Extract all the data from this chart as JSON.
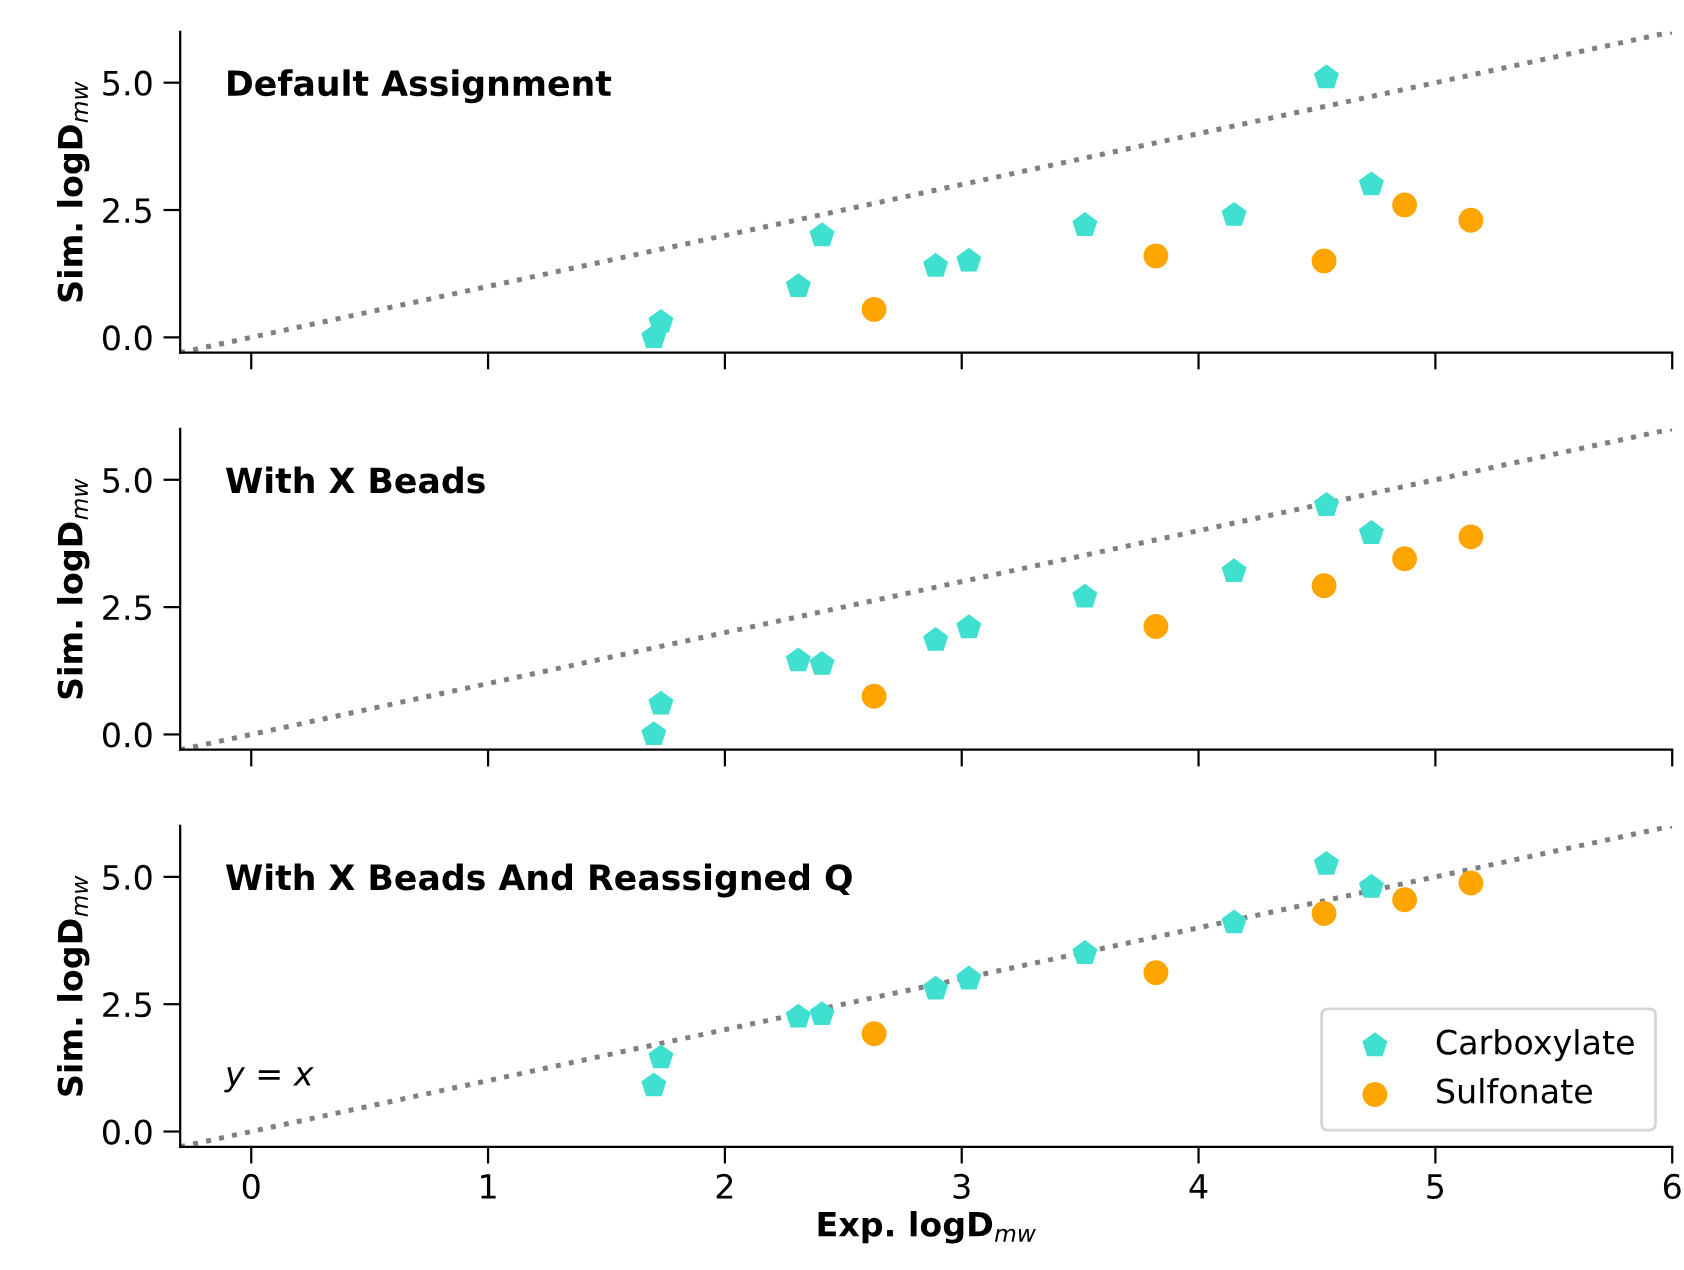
{
  "chart_data": [
    {
      "type": "scatter",
      "title": "Default Assignment",
      "ylabel": "Sim. logD$_{mw}$",
      "xlim": [
        -0.3,
        6
      ],
      "ylim": [
        -0.3,
        6
      ],
      "xticks": [
        0,
        1,
        2,
        3,
        4,
        5,
        6
      ],
      "yticks": [
        {
          "value": 0,
          "label": "0.0"
        },
        {
          "value": 2.5,
          "label": "2.5"
        },
        {
          "value": 5,
          "label": "5.0"
        }
      ],
      "tick_labels": "y",
      "grid": false,
      "legend": false,
      "series": [
        {
          "type": "line",
          "color": "#808080",
          "line_style": "dotted",
          "marker": "none",
          "x": [
            -0.3,
            6
          ],
          "values": [
            -0.3,
            6
          ]
        },
        {
          "color": "#40e0d0",
          "x": [
            1.7,
            1.73,
            2.31,
            2.41,
            2.89,
            3.03,
            3.52,
            4.15,
            4.54,
            4.73
          ],
          "values": [
            0.0,
            0.3,
            1.0,
            2.0,
            1.4,
            1.5,
            2.2,
            2.4,
            5.1,
            3.0
          ]
        },
        {
          "color": "#ffa500",
          "marker": "circle",
          "x": [
            2.63,
            3.82,
            4.53,
            4.87,
            5.15
          ],
          "values": [
            0.55,
            1.6,
            1.5,
            2.6,
            2.3
          ]
        }
      ]
    },
    {
      "type": "scatter",
      "title": "With X Beads",
      "ylabel": "Sim. logD$_{mw}$",
      "xlim": [
        -0.3,
        6
      ],
      "ylim": [
        -0.3,
        6
      ],
      "xticks": [
        0,
        1,
        2,
        3,
        4,
        5,
        6
      ],
      "yticks": [
        {
          "value": 0,
          "label": "0.0"
        },
        {
          "value": 2.5,
          "label": "2.5"
        },
        {
          "value": 5,
          "label": "5.0"
        }
      ],
      "tick_labels": "y",
      "grid": false,
      "legend": false,
      "series": [
        {
          "type": "line",
          "color": "#808080",
          "line_style": "dotted",
          "marker": "none",
          "x": [
            -0.3,
            6
          ],
          "values": [
            -0.3,
            6
          ]
        },
        {
          "color": "#40e0d0",
          "x": [
            1.7,
            1.73,
            2.31,
            2.41,
            2.89,
            3.03,
            3.52,
            4.15,
            4.54,
            4.73
          ],
          "values": [
            0.0,
            0.6,
            1.45,
            1.38,
            1.85,
            2.1,
            2.7,
            3.2,
            4.5,
            3.95
          ]
        },
        {
          "color": "#ffa500",
          "marker": "circle",
          "x": [
            2.63,
            3.82,
            4.53,
            4.87,
            5.15
          ],
          "values": [
            0.75,
            2.12,
            2.92,
            3.45,
            3.88
          ]
        }
      ]
    },
    {
      "type": "scatter",
      "title": "With X Beads And Reassigned Q",
      "xlabel": "Exp. logD$_{mw}$",
      "ylabel": "Sim. logD$_{mw}$",
      "xlim": [
        -0.3,
        6
      ],
      "ylim": [
        -0.3,
        6
      ],
      "xticks": [
        0,
        1,
        2,
        3,
        4,
        5,
        6
      ],
      "yticks": [
        {
          "value": 0,
          "label": "0.0"
        },
        {
          "value": 2.5,
          "label": "2.5"
        },
        {
          "value": 5,
          "label": "5.0"
        }
      ],
      "grid": false,
      "legend": "bottom right",
      "annotations": [
        "y = x"
      ],
      "series": [
        {
          "type": "line",
          "color": "#808080",
          "line_style": "dotted",
          "marker": "none",
          "x": [
            -0.3,
            6
          ],
          "values": [
            -0.3,
            6
          ]
        },
        {
          "name": "Carboxylate",
          "color": "#40e0d0",
          "x": [
            1.7,
            1.73,
            2.31,
            2.41,
            2.89,
            3.03,
            3.52,
            4.15,
            4.54,
            4.73
          ],
          "values": [
            0.9,
            1.45,
            2.25,
            2.3,
            2.8,
            3.0,
            3.5,
            4.1,
            5.25,
            4.8
          ]
        },
        {
          "name": "Sulfonate",
          "color": "#ffa500",
          "marker": "circle",
          "x": [
            2.63,
            3.82,
            4.53,
            4.87,
            5.15
          ],
          "values": [
            1.92,
            3.12,
            4.28,
            4.55,
            4.88
          ]
        }
      ]
    }
  ]
}
